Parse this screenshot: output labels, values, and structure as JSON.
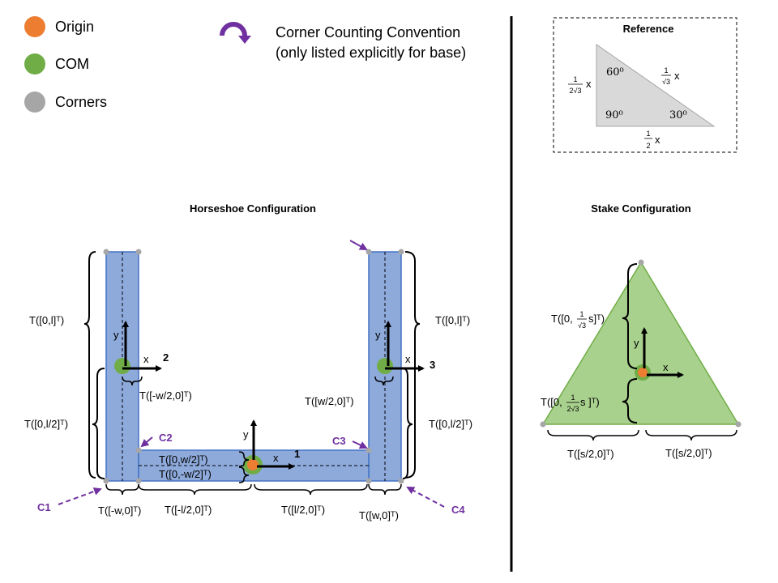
{
  "legend": {
    "origin": "Origin",
    "com": "COM",
    "corners": "Corners",
    "convention_line1": "Corner Counting Convention",
    "convention_line2": "(only listed explicitly for base)"
  },
  "colors": {
    "origin": "#ed7d31",
    "com": "#70ad47",
    "corner": "#a6a6a6",
    "link_fill": "#8eaadb",
    "link_stroke": "#4472c4",
    "stake_fill": "#a9d18e",
    "callout": "#7030a0",
    "ref_triangle": "#d9d9d9"
  },
  "reference": {
    "title": "Reference",
    "angle_top": "60⁰",
    "angle_right_corner": "90⁰",
    "angle_30": "30⁰",
    "left_side_num": "1",
    "left_side_den": "2√3",
    "left_side_var": "x",
    "hyp_num": "1",
    "hyp_den": "√3",
    "hyp_var": "x",
    "bottom_num": "1",
    "bottom_den": "2",
    "bottom_var": "x"
  },
  "horseshoe": {
    "title": "Horseshoe Configuration",
    "left_top": "T([0,l]ᵀ)",
    "left_mid": "T([0,l/2]ᵀ)",
    "left_com_offset": "T([-w/2,0]ᵀ)",
    "right_top": "T([0,l]ᵀ)",
    "right_mid": "T([0,l/2]ᵀ)",
    "right_com_offset": "T([w/2,0]ᵀ)",
    "base_up": "T([0,w/2]ᵀ)",
    "base_down": "T([0,-w/2]ᵀ)",
    "bottom_w_left": "T([-w,0]ᵀ)",
    "bottom_l_left": "T([-l/2,0]ᵀ)",
    "bottom_l_right": "T([l/2,0]ᵀ)",
    "bottom_w_right": "T([w,0]ᵀ)",
    "link1": "1",
    "link2": "2",
    "link3": "3",
    "axis_x": "x",
    "axis_y": "y",
    "c1": "C1",
    "c2": "C2",
    "c3": "C3",
    "c4": "C4"
  },
  "stake": {
    "title": "Stake Configuration",
    "upper_prefix": "T([0,",
    "upper_num": "1",
    "upper_den": "√3",
    "upper_suffix": "s]ᵀ)",
    "lower_prefix": "T([0,",
    "lower_num": "1",
    "lower_den": "2√3",
    "lower_suffix": " s ]ᵀ)",
    "bottom_left": "T([s/2,0]ᵀ)",
    "bottom_right": "T([s/2,0]ᵀ)",
    "axis_x": "x",
    "axis_y": "y"
  }
}
